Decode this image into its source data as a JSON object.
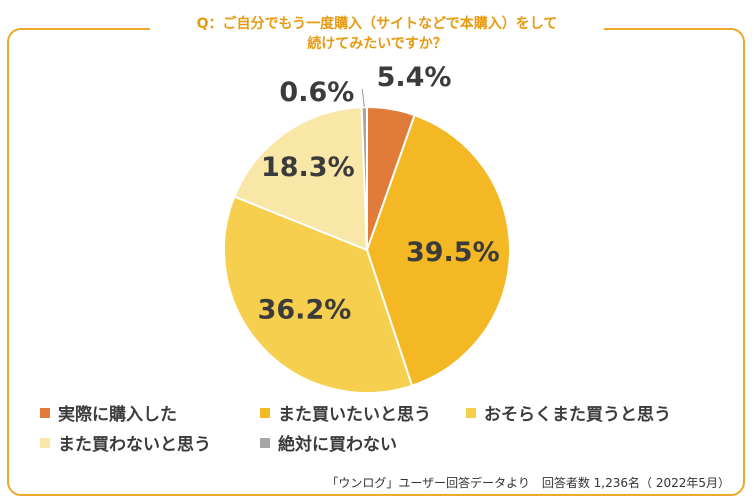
{
  "title": {
    "line1": "Q：ご自分でもう一度購入（サイトなどで本購入）をして",
    "line2": "続けてみたいですか？"
  },
  "source": "「ウンログ」ユーザー回答データより　回答者数 1,236名（ 2022年5月）",
  "chart_data": {
    "type": "pie",
    "title": "Q：ご自分でもう一度購入（サイトなどで本購入）をして続けてみたいですか？",
    "slices": [
      {
        "name": "実際に購入した",
        "value": 5.4,
        "label": "5.4%",
        "color": "#e07b39"
      },
      {
        "name": "また買いたいと思う",
        "value": 39.5,
        "label": "39.5%",
        "color": "#f3b824"
      },
      {
        "name": "おそらくまた買うと思う",
        "value": 36.2,
        "label": "36.2%",
        "color": "#f6cf4e"
      },
      {
        "name": "また買わないと思う",
        "value": 18.3,
        "label": "18.3%",
        "color": "#f8e7a6"
      },
      {
        "name": "絶対に買わない",
        "value": 0.6,
        "label": "0.6%",
        "color": "#a6a6a6"
      }
    ],
    "legend_position": "bottom"
  }
}
